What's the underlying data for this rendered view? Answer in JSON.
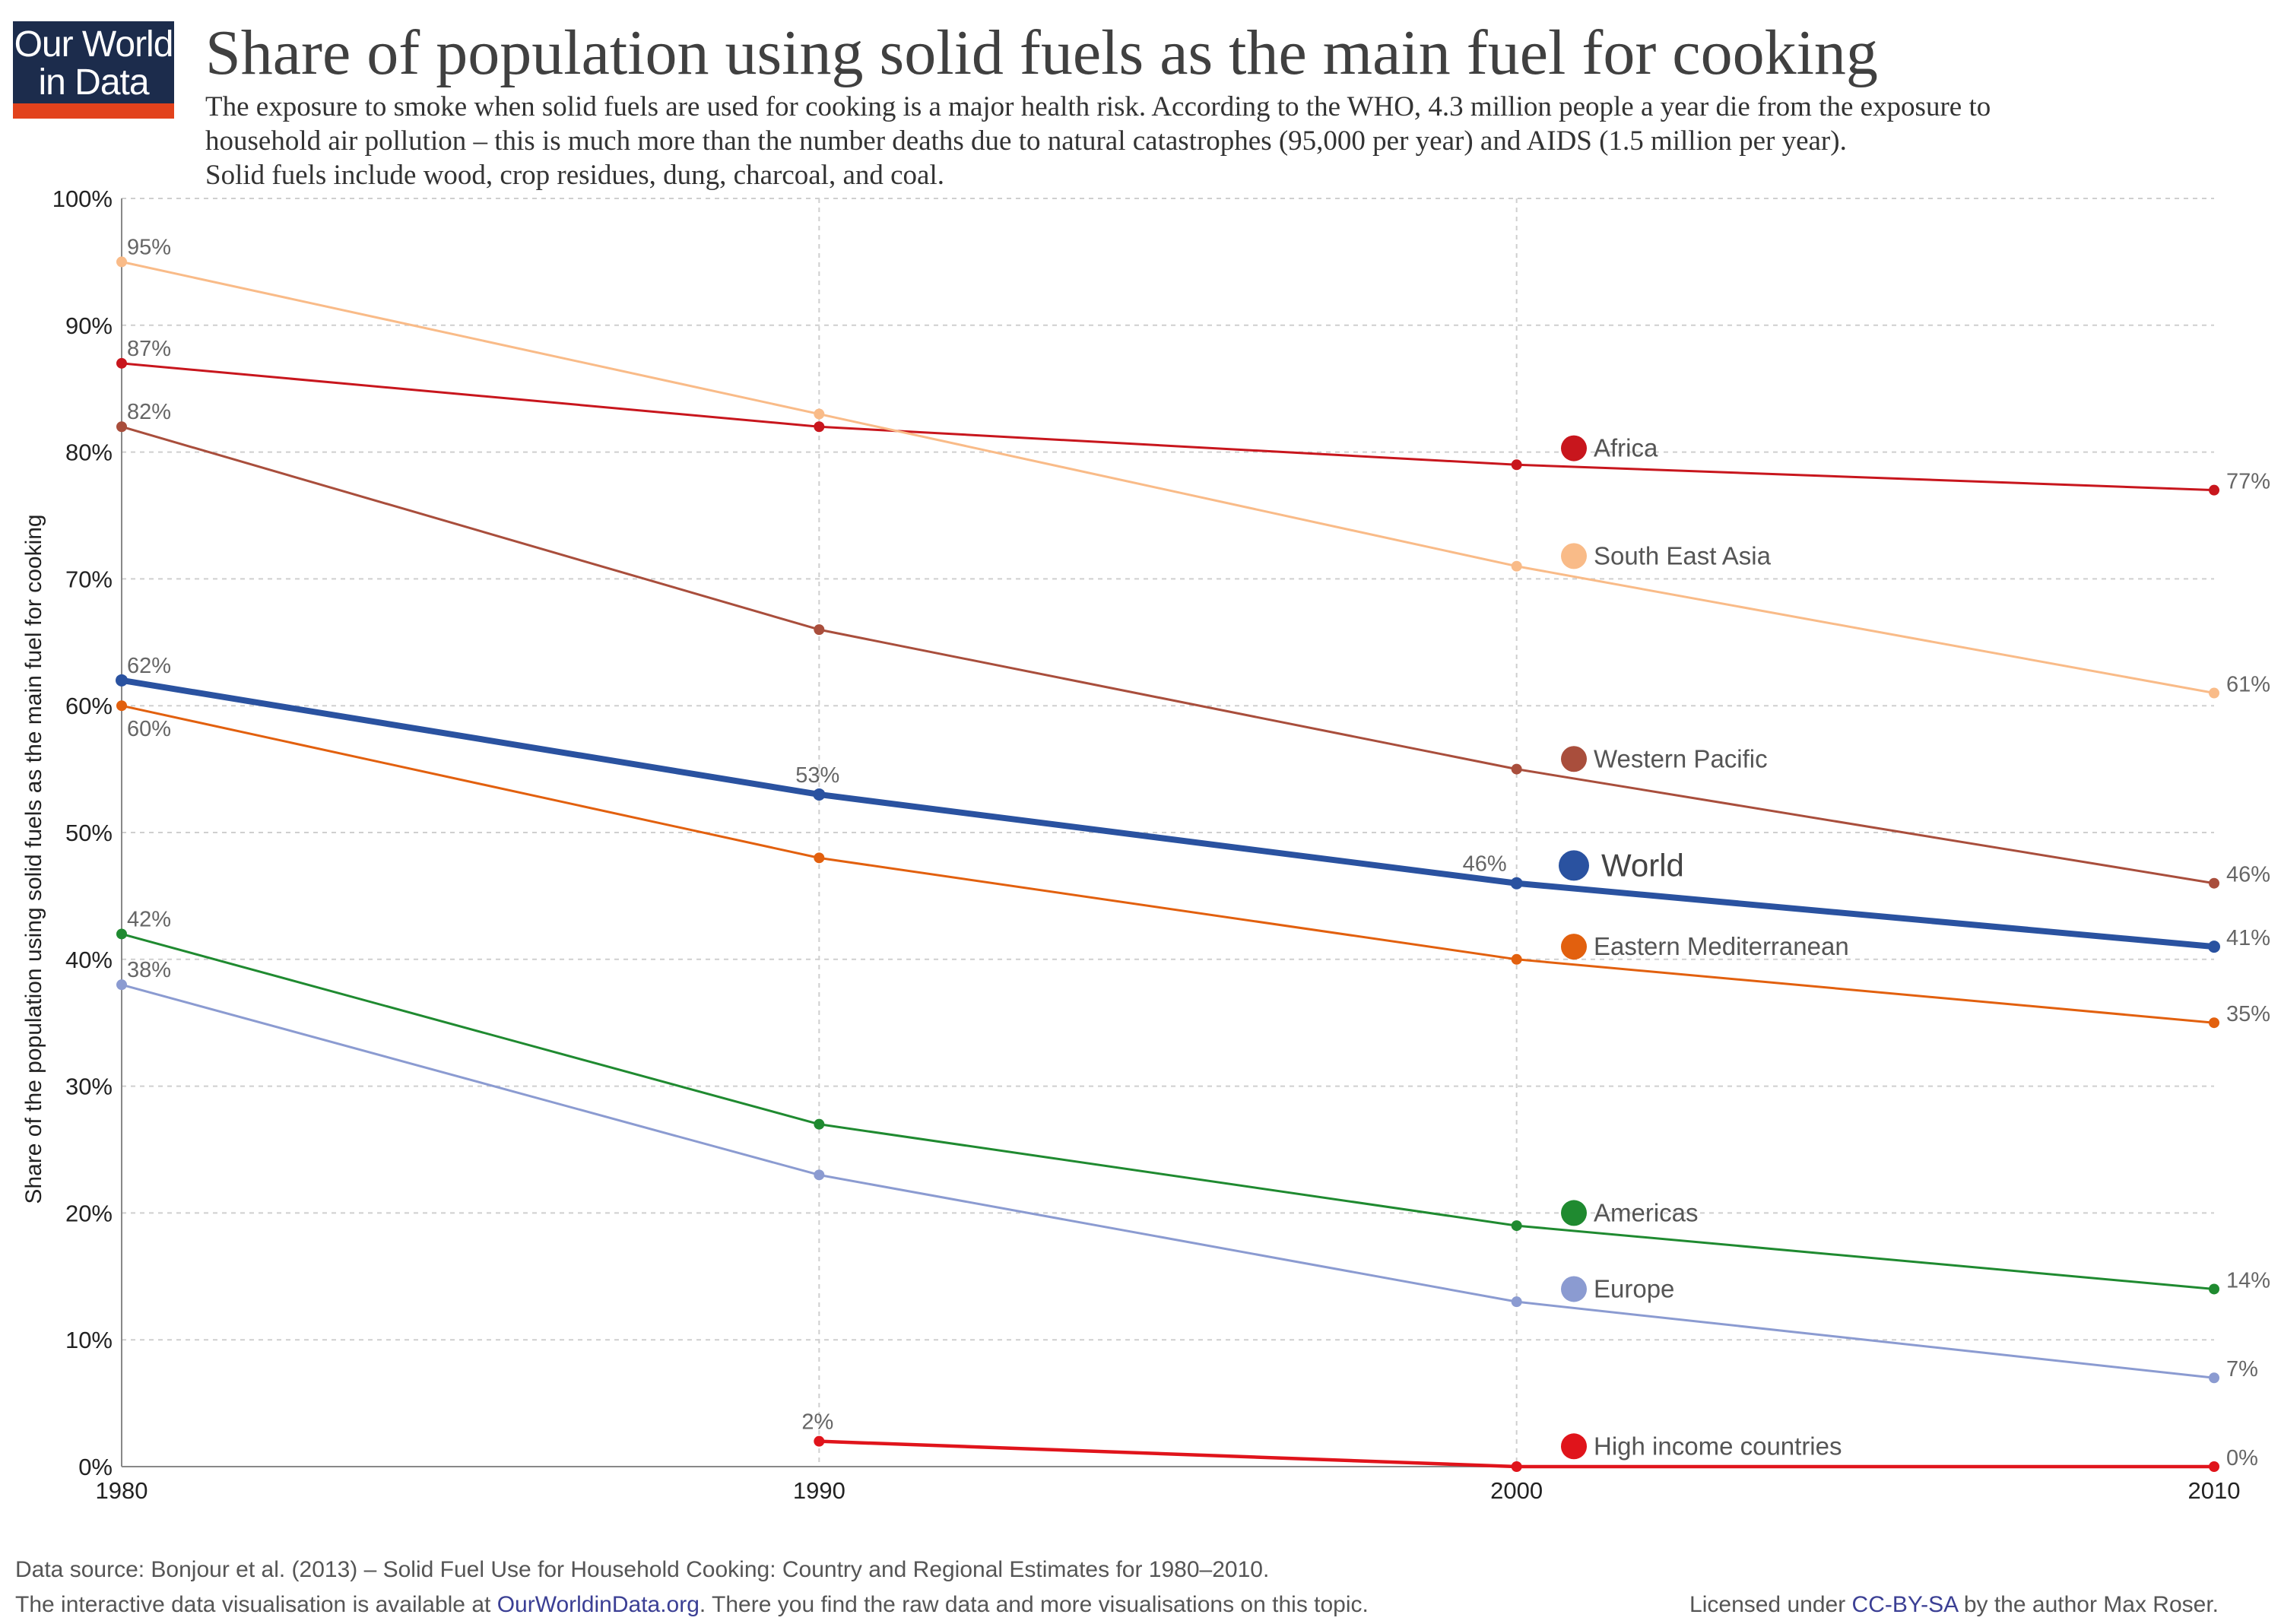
{
  "logo": {
    "line1": "Our World",
    "line2": "in Data"
  },
  "title": "Share of population using solid fuels as the main fuel for cooking",
  "subtitle": [
    "The exposure to smoke when solid fuels are used for cooking is a major health risk. According to the WHO, 4.3 million people a year die from the exposure to",
    "household air pollution – this is much more than the number deaths due to natural catastrophes (95,000 per year) and AIDS (1.5 million per year).",
    "Solid fuels include wood, crop residues, dung, charcoal, and coal."
  ],
  "footer": {
    "source": "Data source:  Bonjour et al. (2013) – Solid Fuel Use for Household Cooking: Country and Regional Estimates for 1980–2010.",
    "interactive_prefix": "The interactive data visualisation is available at ",
    "interactive_link": "OurWorldinData.org",
    "interactive_suffix": ". There you find the raw data and more visualisations on this topic.",
    "license_prefix": "Licensed under ",
    "license_link": "CC-BY-SA",
    "license_suffix": " by the author Max Roser."
  },
  "chart_data": {
    "type": "line",
    "title": "Share of population using solid fuels as the main fuel for cooking",
    "xlabel": "",
    "ylabel": "Share of the population using solid fuels as the main fuel for cooking",
    "x": [
      1980,
      1990,
      2000,
      2010
    ],
    "xlim": [
      1980,
      2010
    ],
    "ylim": [
      0,
      100
    ],
    "y_ticks": [
      "0%",
      "10%",
      "20%",
      "30%",
      "40%",
      "50%",
      "60%",
      "70%",
      "80%",
      "90%",
      "100%"
    ],
    "x_ticks": [
      "1980",
      "1990",
      "2000",
      "2010"
    ],
    "grid": true,
    "legend": "inline labels",
    "series": [
      {
        "name": "Africa",
        "color": "#c8161d",
        "values": [
          87,
          82,
          79,
          77
        ],
        "width": 1,
        "labels": [
          {
            "i": 0,
            "text": "87%"
          },
          {
            "i": 3,
            "text": "77%"
          }
        ]
      },
      {
        "name": "South East Asia",
        "color": "#f9bb88",
        "values": [
          95,
          83,
          71,
          61
        ],
        "width": 1,
        "labels": [
          {
            "i": 0,
            "text": "95%"
          },
          {
            "i": 3,
            "text": "61%"
          }
        ]
      },
      {
        "name": "Western Pacific",
        "color": "#a94e3c",
        "values": [
          82,
          66,
          55,
          46
        ],
        "width": 1,
        "labels": [
          {
            "i": 0,
            "text": "82%"
          },
          {
            "i": 3,
            "text": "46%"
          }
        ]
      },
      {
        "name": "World",
        "color": "#2a52a0",
        "values": [
          62,
          53,
          46,
          41
        ],
        "width": 2,
        "labels": [
          {
            "i": 0,
            "text": "62%"
          },
          {
            "i": 1,
            "text": "53%"
          },
          {
            "i": 2,
            "text": "46%"
          },
          {
            "i": 3,
            "text": "41%"
          }
        ]
      },
      {
        "name": "Eastern Mediterranean",
        "color": "#e2600e",
        "values": [
          60,
          48,
          40,
          35
        ],
        "width": 1,
        "labels": [
          {
            "i": 0,
            "text": "60%"
          },
          {
            "i": 3,
            "text": "35%"
          }
        ]
      },
      {
        "name": "Americas",
        "color": "#1f8a30",
        "values": [
          42,
          27,
          19,
          14
        ],
        "width": 1,
        "labels": [
          {
            "i": 0,
            "text": "42%"
          },
          {
            "i": 3,
            "text": "14%"
          }
        ]
      },
      {
        "name": "Europe",
        "color": "#8b9bd1",
        "values": [
          38,
          23,
          13,
          7
        ],
        "width": 1,
        "labels": [
          {
            "i": 0,
            "text": "38%"
          },
          {
            "i": 3,
            "text": "7%"
          }
        ]
      },
      {
        "name": "High income countries",
        "color": "#e0141b",
        "values": [
          null,
          2,
          0,
          0
        ],
        "width": 1.5,
        "labels": [
          {
            "i": 1,
            "text": "2%"
          },
          {
            "i": 3,
            "text": "0%"
          }
        ]
      }
    ]
  }
}
